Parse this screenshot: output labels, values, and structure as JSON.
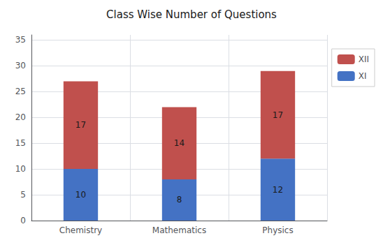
{
  "chart_data": {
    "type": "bar",
    "title": "Class Wise Number of Questions",
    "categories": [
      "Chemistry",
      "Mathematics",
      "Physics"
    ],
    "series": [
      {
        "name": "XI",
        "color": "#4472C4",
        "values": [
          10,
          8,
          12
        ]
      },
      {
        "name": "XII",
        "color": "#C0504D",
        "values": [
          17,
          14,
          17
        ]
      }
    ],
    "stacked": true,
    "data_labels": true,
    "ylim": [
      0,
      36
    ],
    "yticks": [
      0,
      5,
      10,
      15,
      20,
      25,
      30,
      35
    ],
    "grid": true,
    "legend": "right"
  }
}
